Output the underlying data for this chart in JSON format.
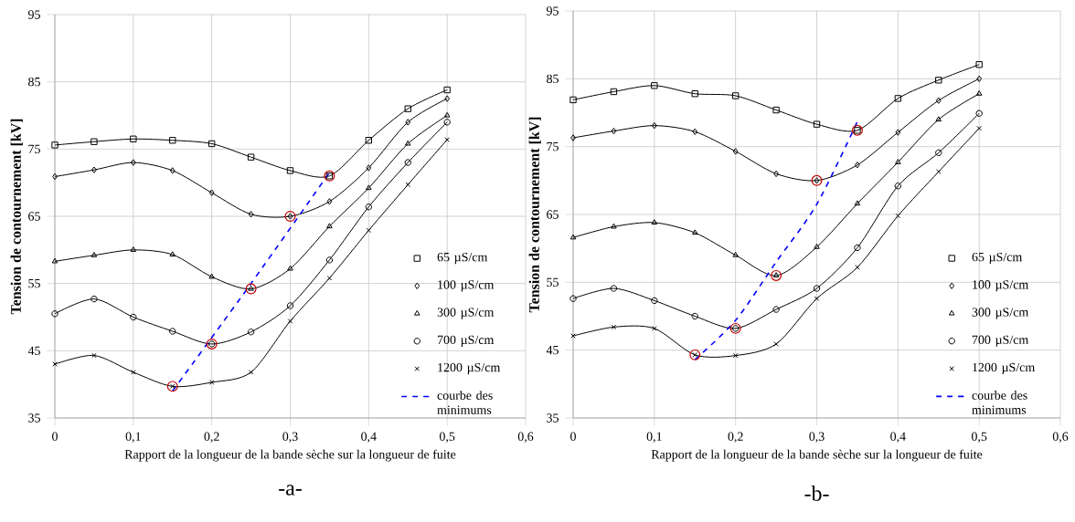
{
  "chart_data": [
    {
      "type": "line",
      "xlabel": "Rapport de la longueur de la bande sèche sur la longueur de fuite",
      "ylabel": "Tension de contournement [kV]",
      "annotations": [
        "-a-"
      ],
      "xlim": [
        0,
        0.6
      ],
      "ylim": [
        35,
        95
      ],
      "xticks": [
        0,
        {
          "value": 0.1,
          "label": "0,1"
        },
        {
          "value": 0.2,
          "label": "0,2"
        },
        {
          "value": 0.3,
          "label": "0,3"
        },
        {
          "value": 0.4,
          "label": "0,4"
        },
        {
          "value": 0.5,
          "label": "0,5"
        },
        {
          "value": 0.6,
          "label": "0,6"
        }
      ],
      "yticks": [
        35,
        45,
        55,
        65,
        75,
        85,
        95
      ],
      "grid": true,
      "legend": "bottom right",
      "x": [
        0,
        0.05,
        0.1,
        0.15,
        0.2,
        0.25,
        0.3,
        0.35,
        0.4,
        0.45,
        0.5
      ],
      "series": [
        {
          "name": "65 µS/cm",
          "color": "#000000",
          "marker": "square",
          "values": [
            75.6,
            76.1,
            76.5,
            76.3,
            75.8,
            73.8,
            71.8,
            71.0,
            76.3,
            81.0,
            83.8
          ]
        },
        {
          "name": "100 µS/cm",
          "color": "#000000",
          "marker": "diamond",
          "values": [
            70.9,
            71.9,
            73.0,
            71.8,
            68.5,
            65.3,
            65.0,
            67.2,
            72.2,
            79.0,
            82.5
          ]
        },
        {
          "name": "300 µS/cm",
          "color": "#000000",
          "marker": "triangle",
          "values": [
            58.3,
            59.2,
            60.0,
            59.3,
            56.0,
            54.2,
            57.2,
            63.5,
            69.2,
            75.8,
            80.0
          ]
        },
        {
          "name": "700 µS/cm",
          "color": "#000000",
          "marker": "circle",
          "values": [
            50.5,
            52.7,
            50.0,
            47.9,
            46.0,
            47.8,
            51.7,
            58.5,
            66.4,
            73.0,
            79.0
          ]
        },
        {
          "name": "1200 µS/cm",
          "color": "#000000",
          "marker": "cross",
          "values": [
            43.0,
            44.3,
            41.8,
            39.7,
            40.3,
            41.8,
            49.4,
            55.8,
            62.9,
            69.7,
            76.4
          ]
        },
        {
          "type": "scatter",
          "color": "#c00000",
          "marker": "circle",
          "x": [
            0.15,
            0.2,
            0.25,
            0.3,
            0.35
          ],
          "values": [
            39.7,
            46.0,
            54.2,
            65.0,
            71.0
          ]
        },
        {
          "name": "courbe des minimums",
          "color": "#0000ff",
          "marker": "none",
          "line_style": "dashed",
          "x": [
            0.15,
            0.25,
            0.35
          ],
          "values": [
            39.0,
            55.0,
            71.5
          ]
        }
      ]
    },
    {
      "type": "line",
      "xlabel": "Rapport de la longueur de la bande sèche sur la longueur de fuite",
      "ylabel": "Tension de contournement [kV]",
      "annotations": [
        "-b-"
      ],
      "xlim": [
        0,
        0.6
      ],
      "ylim": [
        35,
        95
      ],
      "xticks": [
        0,
        {
          "value": 0.1,
          "label": "0,1"
        },
        {
          "value": 0.2,
          "label": "0,2"
        },
        {
          "value": 0.3,
          "label": "0,3"
        },
        {
          "value": 0.4,
          "label": "0,4"
        },
        {
          "value": 0.5,
          "label": "0,5"
        },
        {
          "value": 0.6,
          "label": "0,6"
        }
      ],
      "yticks": [
        35,
        45,
        55,
        65,
        75,
        85,
        95
      ],
      "grid": true,
      "legend": "bottom right",
      "x": [
        0,
        0.05,
        0.1,
        0.15,
        0.2,
        0.25,
        0.3,
        0.35,
        0.4,
        0.45,
        0.5
      ],
      "series": [
        {
          "name": "65 µS/cm",
          "color": "#000000",
          "marker": "square",
          "values": [
            81.9,
            83.1,
            84.0,
            82.8,
            82.5,
            80.4,
            78.3,
            77.4,
            82.1,
            84.8,
            87.1
          ]
        },
        {
          "name": "100 µS/cm",
          "color": "#000000",
          "marker": "diamond",
          "values": [
            76.3,
            77.3,
            78.1,
            77.2,
            74.3,
            71.0,
            70.0,
            72.3,
            77.1,
            81.8,
            85.0
          ]
        },
        {
          "name": "300 µS/cm",
          "color": "#000000",
          "marker": "triangle",
          "values": [
            61.6,
            63.2,
            63.8,
            62.3,
            59.0,
            56.0,
            60.2,
            66.6,
            72.7,
            79.0,
            82.8
          ]
        },
        {
          "name": "700 µS/cm",
          "color": "#000000",
          "marker": "circle",
          "values": [
            52.6,
            54.1,
            52.3,
            50.0,
            48.2,
            51.0,
            54.1,
            60.1,
            69.2,
            74.1,
            79.9
          ]
        },
        {
          "name": "1200 µS/cm",
          "color": "#000000",
          "marker": "cross",
          "values": [
            47.1,
            48.4,
            48.2,
            44.3,
            44.2,
            45.9,
            52.6,
            57.2,
            64.8,
            71.3,
            77.7
          ]
        },
        {
          "type": "scatter",
          "color": "#c00000",
          "marker": "circle",
          "x": [
            0.15,
            0.2,
            0.25,
            0.3,
            0.35
          ],
          "values": [
            44.3,
            48.2,
            56.0,
            70.0,
            77.4
          ]
        },
        {
          "name": "courbe des minimums",
          "color": "#0000ff",
          "marker": "none",
          "line_style": "dashed",
          "x": [
            0.15,
            0.2,
            0.25,
            0.3,
            0.35
          ],
          "values": [
            43.6,
            49.4,
            58.0,
            66.5,
            78.7
          ]
        }
      ]
    }
  ]
}
